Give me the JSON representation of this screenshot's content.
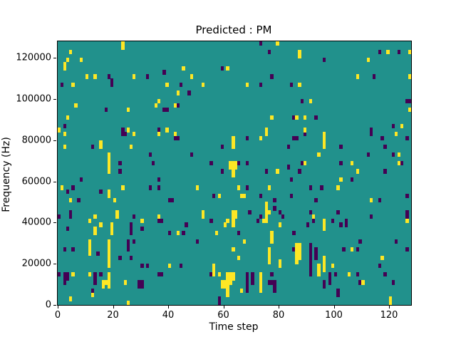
{
  "title": "Predicted : PM",
  "chart_data": {
    "type": "heatmap",
    "title": "Predicted : PM",
    "xlabel": "Time step",
    "ylabel": "Frequency (Hz)",
    "xlim": [
      0,
      128
    ],
    "ylim": [
      0,
      128000
    ],
    "xticks": [
      0,
      20,
      40,
      60,
      80,
      100,
      120
    ],
    "yticks": [
      0,
      20000,
      40000,
      60000,
      80000,
      100000,
      120000
    ],
    "grid": {
      "cols": 128,
      "rows": 64,
      "row_index_origin": "top",
      "hz_per_row": 2000
    },
    "legend": "none",
    "colors": {
      "mid_background": "#21918c",
      "high": "#fde725",
      "low": "#440154",
      "spine": "#000000",
      "figure_background": "#ffffff"
    },
    "cells_high": [
      [
        23,
        0
      ],
      [
        23,
        1
      ],
      [
        79,
        0
      ],
      [
        4,
        2
      ],
      [
        87,
        2
      ],
      [
        87,
        3
      ],
      [
        119,
        2
      ],
      [
        127,
        2
      ],
      [
        3,
        4
      ],
      [
        8,
        4
      ],
      [
        112,
        4
      ],
      [
        2,
        5
      ],
      [
        2,
        6
      ],
      [
        45,
        6
      ],
      [
        61,
        6
      ],
      [
        10,
        8
      ],
      [
        13,
        8
      ],
      [
        27,
        8
      ],
      [
        48,
        8
      ],
      [
        108,
        8
      ],
      [
        127,
        8
      ],
      [
        5,
        10
      ],
      [
        39,
        10
      ],
      [
        52,
        10
      ],
      [
        68,
        10
      ],
      [
        87,
        10
      ],
      [
        43,
        12
      ],
      [
        36,
        14
      ],
      [
        91,
        14
      ],
      [
        6,
        15
      ],
      [
        35,
        15
      ],
      [
        42,
        15
      ],
      [
        25,
        16
      ],
      [
        127,
        16
      ],
      [
        3,
        18
      ],
      [
        77,
        18
      ],
      [
        86,
        18
      ],
      [
        89,
        18
      ],
      [
        124,
        20
      ],
      [
        0,
        21
      ],
      [
        25,
        21
      ],
      [
        39,
        21
      ],
      [
        75,
        21
      ],
      [
        89,
        21
      ],
      [
        2,
        22
      ],
      [
        27,
        22
      ],
      [
        36,
        22
      ],
      [
        42,
        22
      ],
      [
        75,
        22
      ],
      [
        96,
        22
      ],
      [
        122,
        22
      ],
      [
        73,
        23
      ],
      [
        63,
        23
      ],
      [
        96,
        23
      ],
      [
        15,
        24
      ],
      [
        63,
        24
      ],
      [
        96,
        24
      ],
      [
        2,
        25
      ],
      [
        15,
        25
      ],
      [
        26,
        25
      ],
      [
        63,
        25
      ],
      [
        96,
        25
      ],
      [
        18,
        27
      ],
      [
        94,
        27
      ],
      [
        123,
        27
      ],
      [
        18,
        28
      ],
      [
        18,
        29
      ],
      [
        62,
        29
      ],
      [
        63,
        29
      ],
      [
        64,
        29
      ],
      [
        89,
        29
      ],
      [
        106,
        29
      ],
      [
        123,
        29
      ],
      [
        18,
        30
      ],
      [
        62,
        30
      ],
      [
        63,
        30
      ],
      [
        64,
        30
      ],
      [
        18,
        31
      ],
      [
        63,
        31
      ],
      [
        79,
        31
      ],
      [
        108,
        31
      ],
      [
        63,
        32
      ],
      [
        102,
        33
      ],
      [
        1,
        35
      ],
      [
        23,
        35
      ],
      [
        50,
        35
      ],
      [
        65,
        35
      ],
      [
        76,
        35
      ],
      [
        101,
        35
      ],
      [
        18,
        36
      ],
      [
        18,
        37
      ],
      [
        58,
        37
      ],
      [
        66,
        37
      ],
      [
        67,
        37
      ],
      [
        4,
        38
      ],
      [
        20,
        38
      ],
      [
        113,
        38
      ],
      [
        75,
        39
      ],
      [
        75,
        40
      ],
      [
        21,
        41
      ],
      [
        52,
        41
      ],
      [
        63,
        41
      ],
      [
        64,
        41
      ],
      [
        75,
        41
      ],
      [
        76,
        41
      ],
      [
        13,
        42
      ],
      [
        21,
        42
      ],
      [
        36,
        42
      ],
      [
        52,
        42
      ],
      [
        63,
        42
      ],
      [
        64,
        42
      ],
      [
        75,
        42
      ],
      [
        92,
        42
      ],
      [
        11,
        43
      ],
      [
        30,
        43
      ],
      [
        61,
        43
      ],
      [
        63,
        43
      ],
      [
        74,
        43
      ],
      [
        75,
        43
      ],
      [
        96,
        43
      ],
      [
        126,
        43
      ],
      [
        15,
        44
      ],
      [
        19,
        44
      ],
      [
        60,
        44
      ],
      [
        63,
        44
      ],
      [
        80,
        44
      ],
      [
        96,
        44
      ],
      [
        13,
        45
      ],
      [
        19,
        45
      ],
      [
        96,
        45
      ],
      [
        13,
        46
      ],
      [
        19,
        46
      ],
      [
        43,
        46
      ],
      [
        57,
        46
      ],
      [
        77,
        46
      ],
      [
        77,
        47
      ],
      [
        11,
        48
      ],
      [
        18,
        48
      ],
      [
        67,
        48
      ],
      [
        77,
        48
      ],
      [
        11,
        49
      ],
      [
        18,
        49
      ],
      [
        86,
        49
      ],
      [
        87,
        49
      ],
      [
        11,
        50
      ],
      [
        18,
        50
      ],
      [
        63,
        50
      ],
      [
        76,
        50
      ],
      [
        86,
        50
      ],
      [
        87,
        50
      ],
      [
        106,
        50
      ],
      [
        11,
        51
      ],
      [
        18,
        51
      ],
      [
        76,
        51
      ],
      [
        86,
        51
      ],
      [
        87,
        51
      ],
      [
        18,
        52
      ],
      [
        65,
        52
      ],
      [
        76,
        52
      ],
      [
        86,
        52
      ],
      [
        87,
        52
      ],
      [
        96,
        52
      ],
      [
        117,
        52
      ],
      [
        18,
        53
      ],
      [
        76,
        53
      ],
      [
        80,
        53
      ],
      [
        86,
        53
      ],
      [
        96,
        53
      ],
      [
        18,
        54
      ],
      [
        40,
        54
      ],
      [
        56,
        54
      ],
      [
        80,
        54
      ],
      [
        94,
        54
      ],
      [
        96,
        54
      ],
      [
        99,
        54
      ],
      [
        56,
        55
      ],
      [
        94,
        55
      ],
      [
        96,
        55
      ],
      [
        5,
        56
      ],
      [
        11,
        56
      ],
      [
        18,
        56
      ],
      [
        56,
        56
      ],
      [
        58,
        56
      ],
      [
        61,
        56
      ],
      [
        62,
        56
      ],
      [
        63,
        56
      ],
      [
        73,
        56
      ],
      [
        94,
        56
      ],
      [
        105,
        56
      ],
      [
        18,
        57
      ],
      [
        61,
        57
      ],
      [
        62,
        57
      ],
      [
        63,
        57
      ],
      [
        73,
        57
      ],
      [
        16,
        58
      ],
      [
        17,
        58
      ],
      [
        18,
        58
      ],
      [
        24,
        58
      ],
      [
        59,
        58
      ],
      [
        60,
        58
      ],
      [
        61,
        58
      ],
      [
        62,
        58
      ],
      [
        73,
        58
      ],
      [
        110,
        58
      ],
      [
        16,
        59
      ],
      [
        18,
        59
      ],
      [
        59,
        59
      ],
      [
        60,
        59
      ],
      [
        61,
        59
      ],
      [
        73,
        59
      ],
      [
        61,
        60
      ],
      [
        66,
        60
      ],
      [
        73,
        60
      ],
      [
        12,
        61
      ],
      [
        61,
        61
      ],
      [
        4,
        62
      ],
      [
        120,
        62
      ],
      [
        25,
        63
      ],
      [
        120,
        63
      ]
    ],
    "cells_low": [
      [
        73,
        0
      ],
      [
        76,
        2
      ],
      [
        116,
        2
      ],
      [
        123,
        2
      ],
      [
        96,
        4
      ],
      [
        59,
        6
      ],
      [
        38,
        7
      ],
      [
        18,
        8
      ],
      [
        32,
        8
      ],
      [
        77,
        8
      ],
      [
        114,
        8
      ],
      [
        19,
        9
      ],
      [
        1,
        10
      ],
      [
        19,
        10
      ],
      [
        44,
        10
      ],
      [
        73,
        10
      ],
      [
        84,
        10
      ],
      [
        47,
        12
      ],
      [
        88,
        14
      ],
      [
        126,
        14
      ],
      [
        127,
        14
      ],
      [
        43,
        15
      ],
      [
        17,
        16
      ],
      [
        38,
        16
      ],
      [
        39,
        16
      ],
      [
        85,
        18
      ],
      [
        93,
        18
      ],
      [
        2,
        20
      ],
      [
        121,
        20
      ],
      [
        23,
        21
      ],
      [
        36,
        21
      ],
      [
        113,
        21
      ],
      [
        23,
        22
      ],
      [
        24,
        22
      ],
      [
        89,
        22
      ],
      [
        113,
        22
      ],
      [
        42,
        23
      ],
      [
        43,
        23
      ],
      [
        68,
        23
      ],
      [
        85,
        23
      ],
      [
        86,
        23
      ],
      [
        117,
        23
      ],
      [
        126,
        23
      ],
      [
        12,
        25
      ],
      [
        59,
        25
      ],
      [
        83,
        25
      ],
      [
        102,
        25
      ],
      [
        118,
        25
      ],
      [
        33,
        27
      ],
      [
        48,
        27
      ],
      [
        112,
        27
      ],
      [
        121,
        27
      ],
      [
        22,
        29
      ],
      [
        34,
        29
      ],
      [
        55,
        29
      ],
      [
        65,
        29
      ],
      [
        68,
        29
      ],
      [
        88,
        29
      ],
      [
        102,
        29
      ],
      [
        124,
        29
      ],
      [
        83,
        30
      ],
      [
        22,
        31
      ],
      [
        59,
        31
      ],
      [
        75,
        31
      ],
      [
        87,
        31
      ],
      [
        118,
        31
      ],
      [
        8,
        33
      ],
      [
        36,
        33
      ],
      [
        84,
        33
      ],
      [
        106,
        33
      ],
      [
        5,
        35
      ],
      [
        33,
        35
      ],
      [
        36,
        35
      ],
      [
        68,
        35
      ],
      [
        91,
        35
      ],
      [
        95,
        35
      ],
      [
        3,
        36
      ],
      [
        15,
        36
      ],
      [
        56,
        37
      ],
      [
        73,
        37
      ],
      [
        84,
        37
      ],
      [
        126,
        37
      ],
      [
        7,
        38
      ],
      [
        40,
        38
      ],
      [
        41,
        38
      ],
      [
        78,
        38
      ],
      [
        93,
        38
      ],
      [
        116,
        38
      ],
      [
        78,
        40
      ],
      [
        4,
        41
      ],
      [
        69,
        41
      ],
      [
        80,
        41
      ],
      [
        91,
        41
      ],
      [
        101,
        41
      ],
      [
        126,
        41
      ],
      [
        0,
        42
      ],
      [
        4,
        42
      ],
      [
        27,
        42
      ],
      [
        73,
        42
      ],
      [
        81,
        42
      ],
      [
        113,
        42
      ],
      [
        126,
        42
      ],
      [
        36,
        43
      ],
      [
        37,
        43
      ],
      [
        55,
        43
      ],
      [
        72,
        43
      ],
      [
        92,
        43
      ],
      [
        99,
        43
      ],
      [
        104,
        43
      ],
      [
        26,
        44
      ],
      [
        46,
        44
      ],
      [
        90,
        44
      ],
      [
        102,
        44
      ],
      [
        104,
        44
      ],
      [
        3,
        45
      ],
      [
        26,
        45
      ],
      [
        30,
        45
      ],
      [
        26,
        46
      ],
      [
        40,
        46
      ],
      [
        45,
        46
      ],
      [
        65,
        46
      ],
      [
        85,
        46
      ],
      [
        25,
        48
      ],
      [
        27,
        48
      ],
      [
        50,
        48
      ],
      [
        109,
        48
      ],
      [
        122,
        48
      ],
      [
        25,
        49
      ],
      [
        91,
        49
      ],
      [
        2,
        50
      ],
      [
        5,
        50
      ],
      [
        25,
        50
      ],
      [
        85,
        50
      ],
      [
        91,
        50
      ],
      [
        93,
        50
      ],
      [
        103,
        50
      ],
      [
        108,
        50
      ],
      [
        126,
        50
      ],
      [
        14,
        51
      ],
      [
        91,
        51
      ],
      [
        93,
        51
      ],
      [
        22,
        52
      ],
      [
        26,
        52
      ],
      [
        91,
        52
      ],
      [
        93,
        52
      ],
      [
        91,
        53
      ],
      [
        30,
        54
      ],
      [
        32,
        54
      ],
      [
        44,
        54
      ],
      [
        91,
        54
      ],
      [
        116,
        54
      ],
      [
        91,
        55
      ],
      [
        0,
        56
      ],
      [
        2,
        56
      ],
      [
        3,
        56
      ],
      [
        13,
        56
      ],
      [
        15,
        56
      ],
      [
        36,
        56
      ],
      [
        37,
        56
      ],
      [
        55,
        56
      ],
      [
        68,
        56
      ],
      [
        70,
        56
      ],
      [
        77,
        56
      ],
      [
        91,
        56
      ],
      [
        98,
        56
      ],
      [
        100,
        56
      ],
      [
        108,
        56
      ],
      [
        118,
        56
      ],
      [
        2,
        57
      ],
      [
        3,
        57
      ],
      [
        13,
        57
      ],
      [
        68,
        57
      ],
      [
        70,
        57
      ],
      [
        98,
        57
      ],
      [
        2,
        58
      ],
      [
        13,
        58
      ],
      [
        29,
        58
      ],
      [
        30,
        58
      ],
      [
        68,
        58
      ],
      [
        70,
        58
      ],
      [
        76,
        58
      ],
      [
        77,
        58
      ],
      [
        78,
        58
      ],
      [
        96,
        58
      ],
      [
        98,
        58
      ],
      [
        109,
        58
      ],
      [
        121,
        58
      ],
      [
        29,
        59
      ],
      [
        30,
        59
      ],
      [
        68,
        59
      ],
      [
        78,
        59
      ],
      [
        96,
        59
      ],
      [
        12,
        60
      ],
      [
        68,
        60
      ],
      [
        78,
        60
      ],
      [
        101,
        60
      ],
      [
        101,
        61
      ],
      [
        58,
        62
      ],
      [
        58,
        63
      ]
    ]
  }
}
